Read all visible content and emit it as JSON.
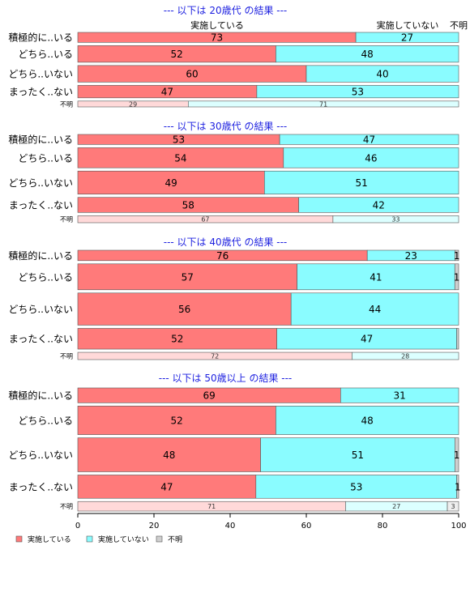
{
  "chart_data": {
    "type": "bar",
    "orientation": "horizontal",
    "stacked": true,
    "normalized": true,
    "xlim": [
      0,
      100
    ],
    "x_ticks": [
      0,
      20,
      40,
      60,
      80,
      100
    ],
    "header_labels": [
      "実施している",
      "実施していない",
      "不明"
    ],
    "legend": {
      "placement": "bottom-left",
      "entries": [
        {
          "name": "実施している",
          "color": "#ff7a7a"
        },
        {
          "name": "実施していない",
          "color": "#8afcff"
        },
        {
          "name": "不明",
          "color": "#cfcfcf"
        }
      ]
    },
    "panels": [
      {
        "title": "--- 以下は 20歳代 の結果 ---",
        "rows": [
          {
            "label": "積極的に..いる",
            "values": [
              73,
              27,
              0
            ],
            "labels": [
              "73",
              "27",
              ""
            ],
            "weight": 0.6,
            "faded": false
          },
          {
            "label": "どちら..いる",
            "values": [
              52,
              48,
              0
            ],
            "labels": [
              "52",
              "48",
              ""
            ],
            "weight": 1.0,
            "faded": false
          },
          {
            "label": "どちら..いない",
            "values": [
              60,
              40,
              0
            ],
            "labels": [
              "60",
              "40",
              ""
            ],
            "weight": 1.0,
            "faded": false
          },
          {
            "label": "まったく..ない",
            "values": [
              47,
              53,
              0
            ],
            "labels": [
              "47",
              "53",
              ""
            ],
            "weight": 0.75,
            "faded": false
          },
          {
            "label": "不明",
            "values": [
              29,
              71,
              0
            ],
            "labels": [
              "29",
              "71",
              ""
            ],
            "weight": 0.35,
            "faded": true
          }
        ]
      },
      {
        "title": "--- 以下は 30歳代 の結果 ---",
        "rows": [
          {
            "label": "積極的に..いる",
            "values": [
              53,
              47,
              0
            ],
            "labels": [
              "53",
              "47",
              ""
            ],
            "weight": 0.5,
            "faded": false
          },
          {
            "label": "どちら..いる",
            "values": [
              54,
              46,
              0
            ],
            "labels": [
              "54",
              "46",
              ""
            ],
            "weight": 1.0,
            "faded": false
          },
          {
            "label": "どちら..いない",
            "values": [
              49,
              51,
              0
            ],
            "labels": [
              "49",
              "51",
              ""
            ],
            "weight": 1.15,
            "faded": false
          },
          {
            "label": "まったく..ない",
            "values": [
              58,
              42,
              0
            ],
            "labels": [
              "58",
              "42",
              ""
            ],
            "weight": 0.75,
            "faded": false
          },
          {
            "label": "不明",
            "values": [
              67,
              33,
              0
            ],
            "labels": [
              "67",
              "33",
              ""
            ],
            "weight": 0.35,
            "faded": true
          }
        ]
      },
      {
        "title": "--- 以下は 40歳代 の結果 ---",
        "rows": [
          {
            "label": "積極的に..いる",
            "values": [
              76,
              23,
              1
            ],
            "labels": [
              "76",
              "23",
              "1"
            ],
            "weight": 0.5,
            "faded": false
          },
          {
            "label": "どちら..いる",
            "values": [
              57,
              41,
              1
            ],
            "labels": [
              "57",
              "41",
              "1"
            ],
            "weight": 1.25,
            "faded": false
          },
          {
            "label": "どちら..いない",
            "values": [
              56,
              44,
              0
            ],
            "labels": [
              "56",
              "44",
              ""
            ],
            "weight": 1.55,
            "faded": false
          },
          {
            "label": "まったく..ない",
            "values": [
              52,
              47,
              0.5
            ],
            "labels": [
              "52",
              "47",
              ""
            ],
            "weight": 1.0,
            "faded": false
          },
          {
            "label": "不明",
            "values": [
              72,
              28,
              0
            ],
            "labels": [
              "72",
              "28",
              ""
            ],
            "weight": 0.35,
            "faded": true
          }
        ]
      },
      {
        "title": "--- 以下は 50歳以上 の結果 ---",
        "rows": [
          {
            "label": "積極的に..いる",
            "values": [
              69,
              31,
              0
            ],
            "labels": [
              "69",
              "31",
              ""
            ],
            "weight": 0.7,
            "faded": false
          },
          {
            "label": "どちら..いる",
            "values": [
              52,
              48,
              0
            ],
            "labels": [
              "52",
              "48",
              ""
            ],
            "weight": 1.35,
            "faded": false
          },
          {
            "label": "どちら..いない",
            "values": [
              48,
              51,
              1
            ],
            "labels": [
              "48",
              "51",
              "1"
            ],
            "weight": 1.6,
            "faded": false
          },
          {
            "label": "まったく..ない",
            "values": [
              47,
              53,
              0.5
            ],
            "labels": [
              "47",
              "53",
              "1"
            ],
            "weight": 1.1,
            "faded": false
          },
          {
            "label": "不明",
            "values": [
              71,
              27,
              3
            ],
            "labels": [
              "71",
              "27",
              "3"
            ],
            "weight": 0.45,
            "faded": true
          }
        ]
      }
    ]
  }
}
